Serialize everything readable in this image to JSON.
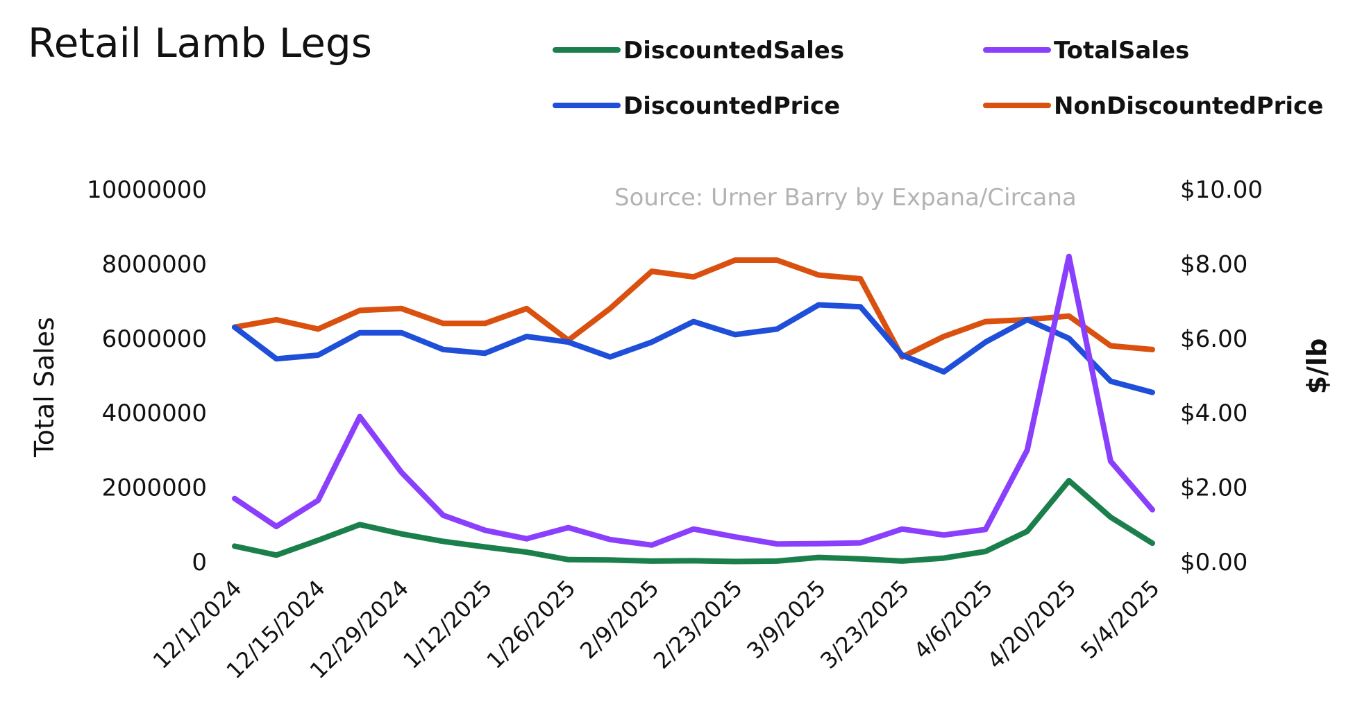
{
  "chart_data": {
    "type": "line",
    "title": "Retail Lamb Legs",
    "annotation": "Source: Urner Barry by Expana/Circana",
    "ylabel": "Total Sales",
    "y2label": "$/lb",
    "ylim": [
      0,
      10000000
    ],
    "y2lim": [
      0,
      10
    ],
    "yticks": [
      "10000000",
      "8000000",
      "6000000",
      "4000000",
      "2000000",
      "0"
    ],
    "y2ticks": [
      "$10.00",
      "$8.00",
      "$6.00",
      "$4.00",
      "$2.00",
      "$0.00"
    ],
    "grid": false,
    "legend_position": "top",
    "x": [
      "12/1/2024",
      "12/8/2024",
      "12/15/2024",
      "12/22/2024",
      "12/29/2024",
      "1/5/2025",
      "1/12/2025",
      "1/19/2025",
      "1/26/2025",
      "2/2/2025",
      "2/9/2025",
      "2/16/2025",
      "2/23/2025",
      "3/2/2025",
      "3/9/2025",
      "3/16/2025",
      "3/23/2025",
      "3/30/2025",
      "4/6/2025",
      "4/13/2025",
      "4/20/2025",
      "4/27/2025",
      "5/4/2025"
    ],
    "x_tick_labels": [
      "12/1/2024",
      "12/15/2024",
      "12/29/2024",
      "1/12/2025",
      "1/26/2025",
      "2/9/2025",
      "2/23/2025",
      "3/9/2025",
      "3/23/2025",
      "4/6/2025",
      "4/20/2025",
      "5/4/2025"
    ],
    "series": [
      {
        "name": "DiscountedSales",
        "axis": "left",
        "color": "#1a7f4b",
        "values": [
          420000,
          180000,
          580000,
          1000000,
          750000,
          550000,
          400000,
          260000,
          60000,
          50000,
          20000,
          30000,
          10000,
          20000,
          120000,
          80000,
          20000,
          100000,
          280000,
          820000,
          2180000,
          1200000,
          500000
        ]
      },
      {
        "name": "TotalSales",
        "axis": "left",
        "color": "#8a3ffc",
        "values": [
          1700000,
          950000,
          1650000,
          3900000,
          2400000,
          1250000,
          850000,
          620000,
          920000,
          600000,
          450000,
          880000,
          670000,
          480000,
          490000,
          510000,
          880000,
          720000,
          870000,
          3000000,
          8200000,
          2700000,
          1400000
        ]
      },
      {
        "name": "DiscountedPrice",
        "axis": "right",
        "color": "#1f4fd8",
        "values": [
          6.3,
          5.45,
          5.55,
          6.15,
          6.15,
          5.7,
          5.6,
          6.05,
          5.9,
          5.5,
          5.9,
          6.45,
          6.1,
          6.25,
          6.9,
          6.85,
          5.55,
          5.1,
          5.9,
          6.5,
          6.0,
          4.85,
          4.55
        ]
      },
      {
        "name": "NonDiscountedPrice",
        "axis": "right",
        "color": "#d9500f",
        "values": [
          6.3,
          6.5,
          6.25,
          6.75,
          6.8,
          6.4,
          6.4,
          6.8,
          5.95,
          6.8,
          7.8,
          7.65,
          8.1,
          8.1,
          7.7,
          7.6,
          5.5,
          6.05,
          6.45,
          6.5,
          6.6,
          5.8,
          5.7
        ]
      }
    ]
  }
}
